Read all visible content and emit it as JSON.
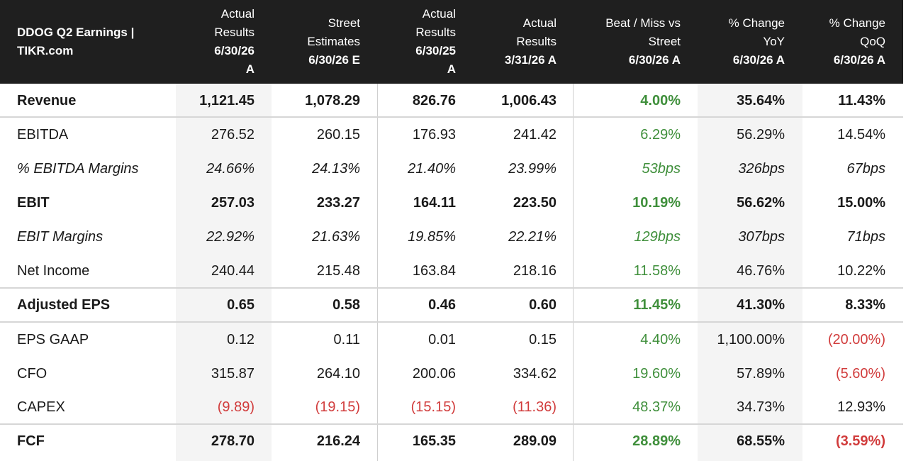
{
  "header": {
    "title": "DDOG Q2 Earnings | TIKR.com",
    "columns": [
      {
        "top": "Actual\nResults",
        "bottom": "6/30/26\nA"
      },
      {
        "top": "Street\nEstimates",
        "bottom": "6/30/26 E"
      },
      {
        "top": "Actual\nResults",
        "bottom": "6/30/25\nA"
      },
      {
        "top": "Actual\nResults",
        "bottom": "3/31/26 A"
      },
      {
        "top": "Beat / Miss vs\nStreet",
        "bottom": "6/30/26 A"
      },
      {
        "top": "% Change\nYoY",
        "bottom": "6/30/26 A"
      },
      {
        "top": "% Change\nQoQ",
        "bottom": "6/30/26 A"
      }
    ]
  },
  "colors": {
    "header_bg": "#1f1f1f",
    "positive": "#3f8f3b",
    "negative": "#d13c3c",
    "stripe": "#f4f4f4"
  },
  "rows": [
    {
      "label": "Revenue",
      "style": "bold",
      "values": [
        "1,121.45",
        "1,078.29",
        "826.76",
        "1,006.43",
        "4.00%",
        "35.64%",
        "11.43%"
      ]
    },
    {
      "label": "EBITDA",
      "style": "normal",
      "values": [
        "276.52",
        "260.15",
        "176.93",
        "241.42",
        "6.29%",
        "56.29%",
        "14.54%"
      ]
    },
    {
      "label": "% EBITDA Margins",
      "style": "italic",
      "values": [
        "24.66%",
        "24.13%",
        "21.40%",
        "23.99%",
        "53bps",
        "326bps",
        "67bps"
      ]
    },
    {
      "label": "EBIT",
      "style": "bold",
      "values": [
        "257.03",
        "233.27",
        "164.11",
        "223.50",
        "10.19%",
        "56.62%",
        "15.00%"
      ]
    },
    {
      "label": "EBIT Margins",
      "style": "italic",
      "values": [
        "22.92%",
        "21.63%",
        "19.85%",
        "22.21%",
        "129bps",
        "307bps",
        "71bps"
      ]
    },
    {
      "label": "Net Income",
      "style": "normal",
      "values": [
        "240.44",
        "215.48",
        "163.84",
        "218.16",
        "11.58%",
        "46.76%",
        "10.22%"
      ]
    },
    {
      "label": "Adjusted EPS",
      "style": "bold",
      "values": [
        "0.65",
        "0.58",
        "0.46",
        "0.60",
        "11.45%",
        "41.30%",
        "8.33%"
      ]
    },
    {
      "label": "EPS GAAP",
      "style": "normal",
      "values": [
        "0.12",
        "0.11",
        "0.01",
        "0.15",
        "4.40%",
        "1,100.00%",
        "(20.00%)"
      ]
    },
    {
      "label": "CFO",
      "style": "normal",
      "values": [
        "315.87",
        "264.10",
        "200.06",
        "334.62",
        "19.60%",
        "57.89%",
        "(5.60%)"
      ]
    },
    {
      "label": "CAPEX",
      "style": "normal",
      "values": [
        "(9.89)",
        "(19.15)",
        "(15.15)",
        "(11.36)",
        "48.37%",
        "34.73%",
        "12.93%"
      ]
    },
    {
      "label": "FCF",
      "style": "bold",
      "values": [
        "278.70",
        "216.24",
        "165.35",
        "289.09",
        "28.89%",
        "68.55%",
        "(3.59%)"
      ]
    }
  ]
}
